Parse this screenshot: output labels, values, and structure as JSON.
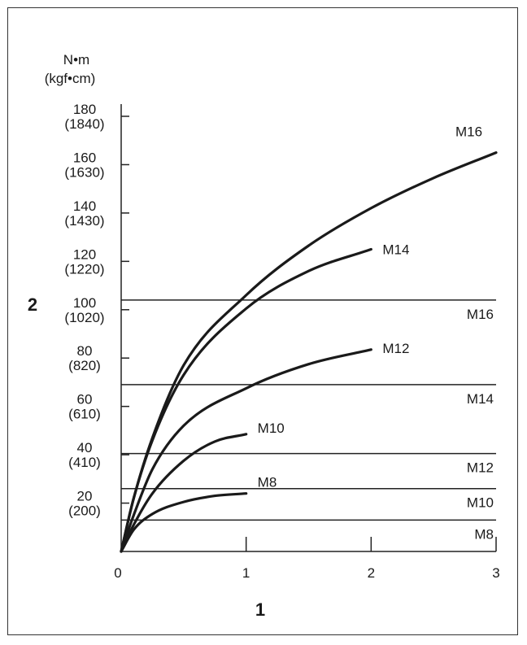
{
  "chart_data": {
    "type": "line",
    "y_unit_main": "N•m",
    "y_unit_alt": "(kgf•cm)",
    "xlabel": "1",
    "ylabel": "2",
    "xlim": [
      0,
      3
    ],
    "ylim": [
      0,
      185
    ],
    "x_ticks": [
      "0",
      "1",
      "2",
      "3"
    ],
    "y_ticks": [
      {
        "value": 20,
        "main": "20",
        "alt": "(200)"
      },
      {
        "value": 40,
        "main": "40",
        "alt": "(410)"
      },
      {
        "value": 60,
        "main": "60",
        "alt": "(610)"
      },
      {
        "value": 80,
        "main": "80",
        "alt": "(820)"
      },
      {
        "value": 100,
        "main": "100",
        "alt": "(1020)"
      },
      {
        "value": 120,
        "main": "120",
        "alt": "(1220)"
      },
      {
        "value": 140,
        "main": "140",
        "alt": "(1430)"
      },
      {
        "value": 160,
        "main": "160",
        "alt": "(1630)"
      },
      {
        "value": 180,
        "main": "180",
        "alt": "(1840)"
      }
    ],
    "curves": [
      {
        "name": "M8",
        "x": [
          0,
          0.1,
          0.25,
          0.5,
          0.75,
          1.0
        ],
        "y": [
          0,
          9,
          15.5,
          20.5,
          23,
          24
        ]
      },
      {
        "name": "M10",
        "x": [
          0,
          0.1,
          0.25,
          0.5,
          0.75,
          1.0
        ],
        "y": [
          0,
          11,
          24,
          37.5,
          45.5,
          48.5
        ]
      },
      {
        "name": "M12",
        "x": [
          0,
          0.1,
          0.25,
          0.5,
          1.0,
          1.5,
          2.0
        ],
        "y": [
          0,
          15,
          34,
          52,
          67.5,
          77.5,
          83.5
        ]
      },
      {
        "name": "M14",
        "x": [
          0,
          0.1,
          0.25,
          0.5,
          1.0,
          1.5,
          2.0
        ],
        "y": [
          0,
          22,
          46,
          73,
          100.5,
          116,
          125
        ]
      },
      {
        "name": "M16",
        "x": [
          0,
          0.1,
          0.25,
          0.5,
          1.0,
          1.5,
          2.0,
          2.5,
          3.0
        ],
        "y": [
          0,
          22,
          47,
          77,
          106,
          126.5,
          142,
          154.5,
          165
        ]
      }
    ],
    "limit_lines": [
      {
        "name": "M8",
        "y": 13
      },
      {
        "name": "M10",
        "y": 26
      },
      {
        "name": "M12",
        "y": 40.5
      },
      {
        "name": "M14",
        "y": 69
      },
      {
        "name": "M16",
        "y": 104
      }
    ],
    "grid": false,
    "legend": "none"
  }
}
